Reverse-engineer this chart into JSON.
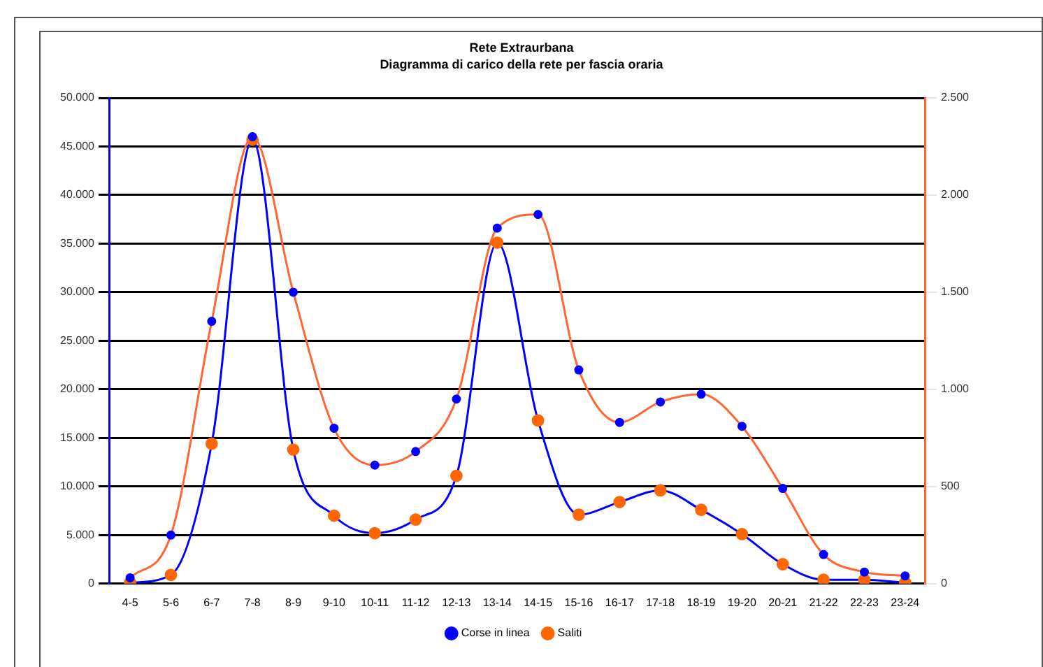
{
  "chart_data": {
    "type": "line",
    "title": "Rete Extraurbana",
    "subtitle": "Diagramma di carico della rete per fascia oraria",
    "categories": [
      "4-5",
      "5-6",
      "6-7",
      "7-8",
      "8-9",
      "9-10",
      "10-11",
      "11-12",
      "12-13",
      "13-14",
      "14-15",
      "15-16",
      "16-17",
      "17-18",
      "18-19",
      "19-20",
      "20-21",
      "21-22",
      "22-23",
      "23-24"
    ],
    "series": [
      {
        "name": "Saliti",
        "color": "#0000ff",
        "colors": [
          "#ff6600",
          "#ff6600",
          "#ff6600",
          "#ff6600",
          "#ff6600",
          "#ff6600",
          "#ff6600",
          "#ff6600",
          "#ff6600",
          "#ff6600",
          "#ff6600",
          "#ff6600",
          "#ff6600",
          "#ff6600",
          "#ff6600",
          "#ff6600",
          "#ff6600",
          "#ff6600",
          "#ff6600",
          "#ff6600"
        ],
        "values": [
          100,
          900,
          14400,
          45700,
          13800,
          7000,
          5200,
          6600,
          11100,
          35100,
          16800,
          7100,
          8400,
          9600,
          7600,
          5100,
          2000,
          400,
          400,
          100
        ]
      },
      {
        "name": "Corse in linea",
        "color": "#ff6633",
        "axis": "y2",
        "colors": [
          "#0000ff",
          "#0000ff",
          "#0000ff",
          "#0000ff",
          "#0000ff",
          "#0000ff",
          "#0000ff",
          "#0000ff",
          "#0000ff",
          "#0000ff",
          "#0000ff",
          "#0000ff",
          "#0000ff",
          "#0000ff",
          "#0000ff",
          "#0000ff",
          "#0000ff",
          "#0000ff",
          "#0000ff",
          "#0000ff"
        ],
        "values": [
          30,
          250,
          1350,
          2300,
          1500,
          800,
          610,
          680,
          950,
          1830,
          1900,
          1100,
          830,
          935,
          975,
          810,
          490,
          150,
          60,
          40
        ]
      }
    ],
    "ylim": [
      0,
      50000
    ],
    "yticks": [
      0,
      {
        "value": 5000,
        "label": "5.000"
      },
      {
        "value": 10000,
        "label": "10.000"
      },
      {
        "value": 15000,
        "label": "15.000"
      },
      {
        "value": 20000,
        "label": "20.000"
      },
      {
        "value": 25000,
        "label": "25.000"
      },
      {
        "value": 30000,
        "label": "30.000"
      },
      {
        "value": 35000,
        "label": "35.000"
      },
      {
        "value": 40000,
        "label": "40.000"
      },
      {
        "value": 45000,
        "label": "45.000"
      },
      {
        "value": 50000,
        "label": "50.000"
      }
    ],
    "y2lim": [
      0,
      2500
    ],
    "y2ticks": [
      0,
      500,
      {
        "value": 1000,
        "label": "1.000"
      },
      {
        "value": 1500,
        "label": "1.500"
      },
      {
        "value": 2000,
        "label": "2.000"
      },
      {
        "value": 2500,
        "label": "2.500"
      }
    ],
    "grid": "y",
    "legend": "bottom",
    "marker": "circle",
    "line_style": "solid"
  }
}
